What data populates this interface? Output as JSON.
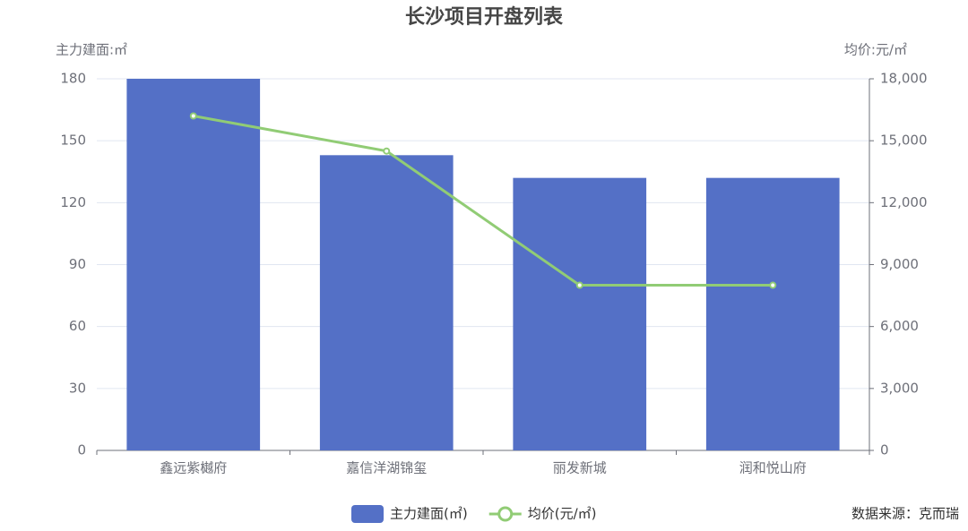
{
  "chart_data": {
    "type": "bar",
    "title": "长沙项目开盘列表",
    "y_label": "主力建面:㎡",
    "y2_label": "均价:元/㎡",
    "annotation": "数据来源：克而瑞",
    "categories": [
      "鑫远紫樾府",
      "嘉信洋湖锦玺",
      "丽发新城",
      "润和悦山府"
    ],
    "series": [
      {
        "name": "主力建面(㎡)",
        "type": "bar",
        "color": "#5470c6",
        "values": [
          180,
          143,
          132,
          132
        ]
      },
      {
        "name": "均价(元/㎡)",
        "type": "line",
        "color": "#91cc75",
        "axis": "y2",
        "values": [
          16200,
          14500,
          8000,
          8000
        ]
      }
    ],
    "ylim": [
      0,
      180
    ],
    "yticks": [
      0,
      30,
      60,
      90,
      120,
      150,
      180
    ],
    "y2lim": [
      0,
      18000
    ],
    "y2ticks": [
      0,
      {
        "value": 3000,
        "label": "3,000"
      },
      {
        "value": 6000,
        "label": "6,000"
      },
      {
        "value": 9000,
        "label": "9,000"
      },
      {
        "value": 12000,
        "label": "12,000"
      },
      {
        "value": 15000,
        "label": "15,000"
      },
      {
        "value": 18000,
        "label": "18,000"
      }
    ],
    "grid": true
  }
}
